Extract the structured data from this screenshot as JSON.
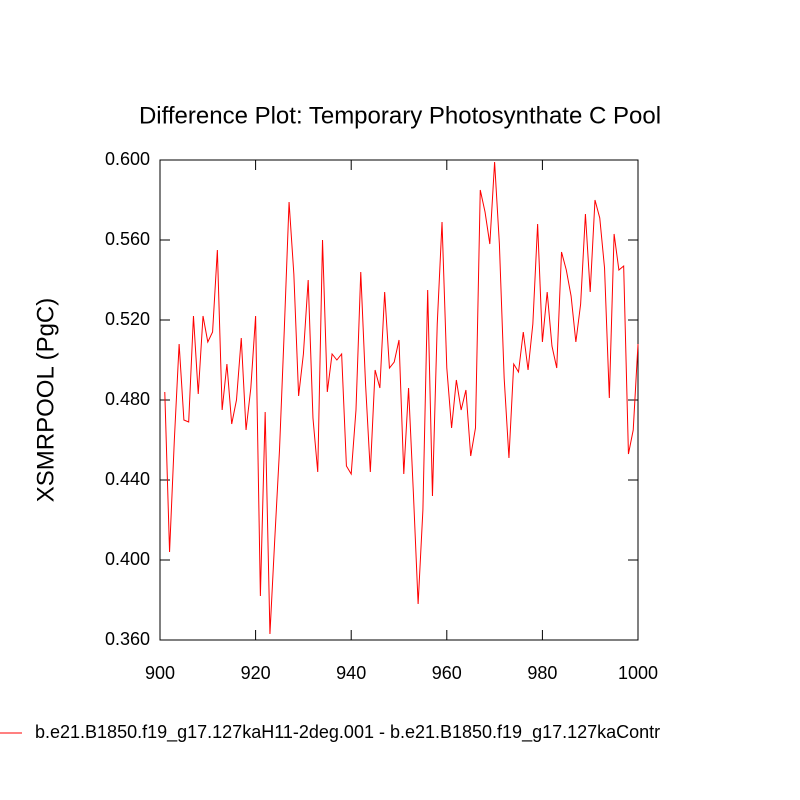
{
  "chart_data": {
    "type": "line",
    "title": "Difference Plot: Temporary Photosynthate C Pool",
    "y_label": "XSMRPOOL  (PgC)",
    "xlim": [
      900,
      1000
    ],
    "xticks": [
      900,
      920,
      940,
      960,
      980,
      1000
    ],
    "ylim": [
      0.36,
      0.6
    ],
    "yticks": [
      {
        "value": 0.36,
        "label": "0.360"
      },
      {
        "value": 0.4,
        "label": "0.400"
      },
      {
        "value": 0.44,
        "label": "0.440"
      },
      {
        "value": 0.48,
        "label": "0.480"
      },
      {
        "value": 0.52,
        "label": "0.520"
      },
      {
        "value": 0.56,
        "label": "0.560"
      },
      {
        "value": 0.6,
        "label": "0.600"
      }
    ],
    "legend": "bottom-left",
    "x": [
      901,
      902,
      903,
      904,
      905,
      906,
      907,
      908,
      909,
      910,
      911,
      912,
      913,
      914,
      915,
      916,
      917,
      918,
      919,
      920,
      921,
      922,
      923,
      924,
      925,
      926,
      927,
      928,
      929,
      930,
      931,
      932,
      933,
      934,
      935,
      936,
      937,
      938,
      939,
      940,
      941,
      942,
      943,
      944,
      945,
      946,
      947,
      948,
      949,
      950,
      951,
      952,
      953,
      954,
      955,
      956,
      957,
      958,
      959,
      960,
      961,
      962,
      963,
      964,
      965,
      966,
      967,
      968,
      969,
      970,
      971,
      972,
      973,
      974,
      975,
      976,
      977,
      978,
      979,
      980,
      981,
      982,
      983,
      984,
      985,
      986,
      987,
      988,
      989,
      990,
      991,
      992,
      993,
      994,
      995,
      996,
      997,
      998,
      999,
      1000
    ],
    "series": [
      {
        "name": "b.e21.B1850.f19_g17.127kaH11-2deg.001 - b.e21.B1850.f19_g17.127kaContr",
        "color": "#ff0000",
        "values": [
          0.484,
          0.404,
          0.46,
          0.508,
          0.47,
          0.469,
          0.522,
          0.483,
          0.522,
          0.509,
          0.514,
          0.555,
          0.475,
          0.498,
          0.468,
          0.48,
          0.511,
          0.465,
          0.486,
          0.522,
          0.382,
          0.474,
          0.363,
          0.41,
          0.455,
          0.515,
          0.579,
          0.543,
          0.482,
          0.503,
          0.54,
          0.471,
          0.444,
          0.56,
          0.484,
          0.503,
          0.5,
          0.503,
          0.447,
          0.443,
          0.475,
          0.544,
          0.488,
          0.444,
          0.495,
          0.486,
          0.534,
          0.496,
          0.499,
          0.51,
          0.443,
          0.486,
          0.434,
          0.378,
          0.425,
          0.535,
          0.432,
          0.518,
          0.569,
          0.496,
          0.466,
          0.49,
          0.475,
          0.485,
          0.452,
          0.466,
          0.585,
          0.574,
          0.558,
          0.599,
          0.558,
          0.491,
          0.451,
          0.498,
          0.494,
          0.514,
          0.495,
          0.518,
          0.568,
          0.509,
          0.534,
          0.507,
          0.496,
          0.554,
          0.545,
          0.532,
          0.509,
          0.528,
          0.573,
          0.534,
          0.58,
          0.571,
          0.546,
          0.481,
          0.563,
          0.545,
          0.547,
          0.453,
          0.465,
          0.508
        ]
      }
    ]
  }
}
